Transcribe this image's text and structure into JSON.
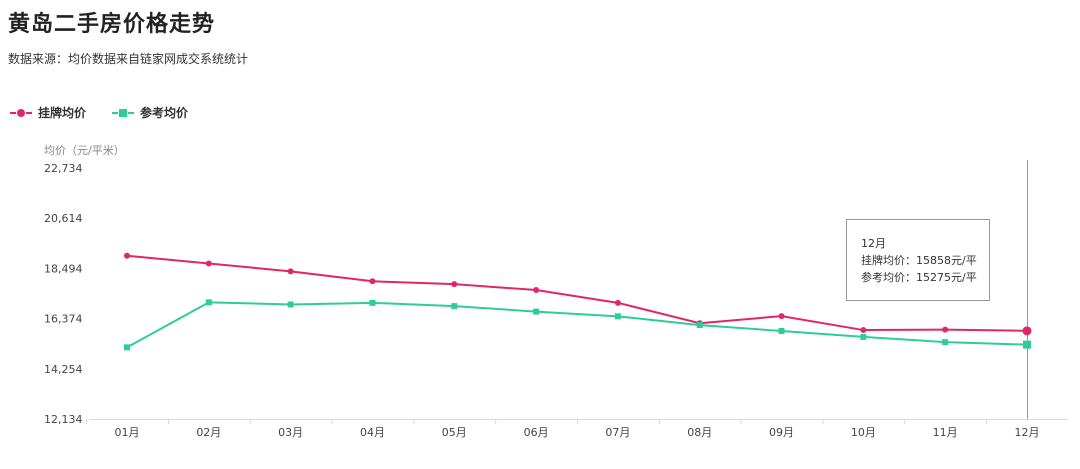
{
  "title": "黄岛二手房价格走势",
  "subtitle": "数据来源：均价数据来自链家网成交系统统计",
  "legend": [
    {
      "label": "挂牌均价",
      "color": "#e0266a",
      "marker": "circle"
    },
    {
      "label": "参考均价",
      "color": "#2ecc9a",
      "marker": "square"
    }
  ],
  "tooltip": {
    "month": "12月",
    "line1": "挂牌均价：15858元/平",
    "line2": "参考均价：15275元/平"
  },
  "chart_data": {
    "type": "line",
    "ylabel": "均价（元/平米）",
    "ylim": [
      12134,
      22734
    ],
    "yticks": [
      "12,134",
      "14,254",
      "16,374",
      "18,494",
      "20,614",
      "22,734"
    ],
    "categories": [
      "01月",
      "02月",
      "03月",
      "04月",
      "05月",
      "06月",
      "07月",
      "08月",
      "09月",
      "10月",
      "11月",
      "12月"
    ],
    "series": [
      {
        "name": "挂牌均价",
        "color": "#e0266a",
        "marker": "circle",
        "values": [
          19030,
          18700,
          18370,
          17950,
          17830,
          17580,
          17040,
          16180,
          16480,
          15890,
          15910,
          15858
        ]
      },
      {
        "name": "参考均价",
        "color": "#2ecc9a",
        "marker": "square",
        "values": [
          15160,
          17060,
          16970,
          17040,
          16900,
          16670,
          16470,
          16100,
          15850,
          15600,
          15380,
          15275
        ]
      }
    ],
    "highlight_index": 11,
    "grid": false
  }
}
